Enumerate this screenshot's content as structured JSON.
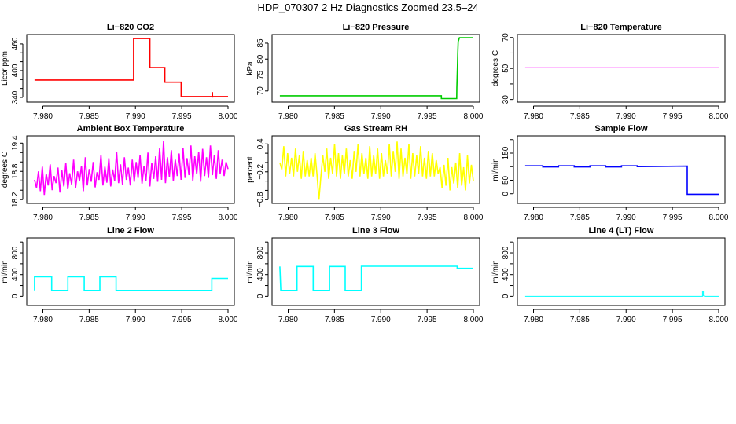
{
  "title": "HDP_070307  2 Hz Diagnostics Zoomed 23.5–24",
  "chart_data": [
    {
      "type": "line",
      "title": "Li−820 CO2",
      "ylabel": "Licor ppm",
      "color": "#ff0000",
      "xlim": [
        7.9791,
        8.0
      ],
      "ylim": [
        329.4,
        481
      ],
      "yticks": [
        340,
        360,
        380,
        400,
        420,
        440,
        460
      ],
      "ylabels": [
        "340",
        "400",
        "460"
      ],
      "ylabelvals": [
        340,
        400,
        460
      ],
      "points": [
        [
          7.9791,
          379
        ],
        [
          7.9898,
          379
        ],
        [
          7.9898,
          472
        ],
        [
          7.99156,
          472
        ],
        [
          7.99156,
          407
        ],
        [
          7.99317,
          407
        ],
        [
          7.99317,
          374
        ],
        [
          7.99494,
          374
        ],
        [
          7.99494,
          342
        ],
        [
          7.99831,
          342
        ],
        [
          7.99831,
          352
        ],
        [
          7.99833,
          340
        ],
        [
          7.99835,
          342
        ],
        [
          8.0,
          342
        ]
      ]
    },
    {
      "type": "line",
      "title": "Li−820 Pressure",
      "ylabel": "kPa",
      "color": "#00cc00",
      "xlim": [
        7.9791,
        8.0
      ],
      "ylim": [
        66.5,
        87.7
      ],
      "yticks": [
        70,
        75,
        80,
        85
      ],
      "ylabels": [
        "70",
        "75",
        "80",
        "85"
      ],
      "ylabelvals": [
        70,
        75,
        80,
        85
      ],
      "points": [
        [
          7.9791,
          68.5
        ],
        [
          7.99654,
          68.5
        ],
        [
          7.99654,
          67.6
        ],
        [
          7.9982,
          67.6
        ],
        [
          7.99822,
          71
        ],
        [
          7.99828,
          77
        ],
        [
          7.99832,
          82
        ],
        [
          7.99836,
          85.5
        ],
        [
          7.9985,
          86.7
        ],
        [
          8.0,
          86.7
        ]
      ]
    },
    {
      "type": "line",
      "title": "Li−820 Temperature",
      "ylabel": "degrees C",
      "color": "#ff00ff",
      "xlim": [
        7.9791,
        8.0
      ],
      "ylim": [
        28.3,
        71.9
      ],
      "yticks": [
        30,
        40,
        50,
        60,
        70
      ],
      "ylabels": [
        "30",
        "50",
        "70"
      ],
      "ylabelvals": [
        30,
        50,
        70
      ],
      "points": [
        [
          7.9791,
          50.5
        ],
        [
          8.0,
          50.5
        ]
      ]
    },
    {
      "type": "line",
      "title": "Ambient Box Temperature",
      "ylabel": "degrees C",
      "color": "#ff00ff",
      "xlim": [
        7.9791,
        8.0
      ],
      "ylim": [
        18.12,
        19.555
      ],
      "yticks": [
        18.2,
        18.4,
        18.6,
        18.8,
        19.0,
        19.2,
        19.4
      ],
      "ylabels": [
        "18.2",
        "18.8",
        "19.4"
      ],
      "ylabelvals": [
        18.2,
        18.8,
        19.4
      ],
      "values": [
        18.62,
        18.45,
        18.8,
        18.38,
        18.9,
        18.3,
        18.75,
        18.5,
        18.95,
        18.4,
        18.7,
        18.55,
        18.88,
        18.35,
        18.82,
        18.48,
        18.98,
        18.42,
        18.76,
        18.52,
        19.05,
        18.45,
        18.8,
        18.6,
        18.92,
        18.38,
        19.1,
        18.5,
        18.85,
        18.58,
        19.0,
        18.46,
        18.78,
        18.62,
        19.15,
        18.5,
        18.9,
        18.56,
        19.08,
        18.48,
        18.84,
        18.6,
        19.22,
        18.55,
        18.95,
        18.52,
        19.1,
        18.62,
        18.88,
        18.5,
        19.05,
        18.58,
        19.0,
        18.66,
        19.15,
        18.54,
        18.92,
        18.6,
        19.2,
        18.48,
        18.98,
        18.64,
        19.12,
        18.58,
        19.3,
        18.62,
        19.45,
        18.55,
        19.1,
        18.68,
        19.25,
        18.6,
        19.05,
        18.7,
        19.18,
        18.62,
        19.3,
        18.66,
        19.08,
        18.72,
        19.35,
        18.6,
        19.12,
        18.74,
        19.22,
        18.58,
        19.28,
        18.7,
        19.1,
        18.66,
        19.35,
        18.72,
        19.15,
        18.64,
        19.25,
        18.75,
        19.05,
        18.7,
        19.0,
        18.85
      ]
    },
    {
      "type": "line",
      "title": "Gas Stream RH",
      "ylabel": "percent",
      "color": "#ffff00",
      "xlim": [
        7.9791,
        8.0
      ],
      "ylim": [
        -0.88,
        0.574
      ],
      "yticks": [
        -0.8,
        -0.6,
        -0.4,
        -0.2,
        0.0,
        0.2,
        0.4
      ],
      "ylabels": [
        "−0.8",
        "−0.2",
        "0.4"
      ],
      "ylabelvals": [
        -0.8,
        -0.2,
        0.4
      ],
      "values": [
        0.0,
        -0.15,
        0.35,
        -0.3,
        0.2,
        -0.25,
        0.1,
        -0.3,
        0.3,
        -0.2,
        0.15,
        -0.35,
        0.25,
        -0.3,
        0.05,
        -0.3,
        0.1,
        -0.3,
        0.2,
        -0.25,
        -0.8,
        -0.3,
        0.15,
        -0.2,
        0.3,
        -0.35,
        0.1,
        -0.25,
        0.4,
        -0.3,
        0.2,
        -0.35,
        0.15,
        -0.25,
        0.3,
        -0.3,
        0.05,
        -0.35,
        0.25,
        -0.2,
        0.4,
        -0.3,
        0.2,
        -0.25,
        0.1,
        -0.35,
        0.35,
        -0.3,
        0.15,
        -0.25,
        0.3,
        -0.35,
        0.2,
        -0.3,
        0.05,
        -0.25,
        0.4,
        -0.3,
        0.25,
        -0.2,
        0.45,
        -0.35,
        0.3,
        -0.3,
        0.1,
        -0.25,
        0.4,
        -0.35,
        0.2,
        -0.3,
        0.15,
        -0.25,
        0.35,
        -0.3,
        0.1,
        -0.35,
        0.25,
        -0.3,
        0.2,
        -0.3,
        0.05,
        -0.25,
        -0.1,
        -0.55,
        -0.05,
        -0.5,
        0.1,
        -0.6,
        -0.1,
        -0.45,
        0.0,
        -0.55,
        0.2,
        -0.5,
        -0.1,
        -0.6,
        0.15,
        -0.45,
        -0.05,
        -0.4
      ]
    },
    {
      "type": "line",
      "title": "Sample Flow",
      "ylabel": "ml/min",
      "color": "#0000ff",
      "xlim": [
        7.9791,
        8.0
      ],
      "ylim": [
        -35.6,
        213.8
      ],
      "yticks": [
        0,
        50,
        100,
        150,
        200
      ],
      "ylabels": [
        "0",
        "50",
        "150"
      ],
      "ylabelvals": [
        0,
        50,
        150
      ],
      "points": [
        [
          7.9791,
          103
        ],
        [
          7.981,
          103
        ],
        [
          7.981,
          99
        ],
        [
          7.9827,
          99
        ],
        [
          7.9827,
          103
        ],
        [
          7.9844,
          103
        ],
        [
          7.9844,
          99
        ],
        [
          7.9861,
          99
        ],
        [
          7.9861,
          103
        ],
        [
          7.9878,
          103
        ],
        [
          7.9878,
          99
        ],
        [
          7.9895,
          99
        ],
        [
          7.9895,
          103
        ],
        [
          7.9912,
          103
        ],
        [
          7.9912,
          100
        ],
        [
          7.9966,
          102
        ],
        [
          7.9966,
          -2
        ],
        [
          8.0,
          -2
        ]
      ]
    },
    {
      "type": "line",
      "title": "Line 2 Flow",
      "ylabel": "ml/min",
      "color": "#00ffff",
      "xlim": [
        7.9791,
        8.0
      ],
      "ylim": [
        -168,
        1075
      ],
      "yticks": [
        0,
        200,
        400,
        600,
        800,
        1000
      ],
      "ylabels": [
        "0",
        "400",
        "800"
      ],
      "ylabelvals": [
        0,
        400,
        800
      ],
      "points": [
        [
          7.9791,
          110
        ],
        [
          7.9791,
          360
        ],
        [
          7.98095,
          360
        ],
        [
          7.98095,
          110
        ],
        [
          7.9827,
          110
        ],
        [
          7.9827,
          360
        ],
        [
          7.98447,
          360
        ],
        [
          7.98447,
          110
        ],
        [
          7.98616,
          110
        ],
        [
          7.98616,
          360
        ],
        [
          7.98791,
          360
        ],
        [
          7.98791,
          110
        ],
        [
          7.99825,
          110
        ],
        [
          7.99825,
          330
        ],
        [
          8.0,
          330
        ]
      ]
    },
    {
      "type": "line",
      "title": "Line 3 Flow",
      "ylabel": "ml/min",
      "color": "#00ffff",
      "xlim": [
        7.9791,
        8.0
      ],
      "ylim": [
        -168,
        1075
      ],
      "yticks": [
        0,
        200,
        400,
        600,
        800,
        1000
      ],
      "ylabels": [
        "0",
        "400",
        "800"
      ],
      "ylabelvals": [
        0,
        400,
        800
      ],
      "points": [
        [
          7.9791,
          550
        ],
        [
          7.9792,
          110
        ],
        [
          7.98095,
          110
        ],
        [
          7.98095,
          550
        ],
        [
          7.9827,
          550
        ],
        [
          7.9827,
          110
        ],
        [
          7.98447,
          110
        ],
        [
          7.98447,
          550
        ],
        [
          7.98616,
          550
        ],
        [
          7.98616,
          110
        ],
        [
          7.98791,
          110
        ],
        [
          7.98791,
          555
        ],
        [
          7.99825,
          555
        ],
        [
          7.99825,
          515
        ],
        [
          8.0,
          515
        ]
      ]
    },
    {
      "type": "line",
      "title": "Line 4 (LT) Flow",
      "ylabel": "ml/min",
      "color": "#00ffff",
      "xlim": [
        7.9791,
        8.0
      ],
      "ylim": [
        -168,
        1075
      ],
      "yticks": [
        0,
        200,
        400,
        600,
        800,
        1000
      ],
      "ylabels": [
        "0",
        "400",
        "800"
      ],
      "ylabelvals": [
        0,
        400,
        800
      ],
      "points": [
        [
          7.9791,
          0
        ],
        [
          7.99825,
          0
        ],
        [
          7.99825,
          100
        ],
        [
          7.99835,
          100
        ],
        [
          7.99835,
          10
        ],
        [
          7.9985,
          0
        ],
        [
          8.0,
          0
        ]
      ]
    }
  ],
  "xticks": [
    7.98,
    7.985,
    7.99,
    7.995,
    8.0
  ],
  "xticklabels": [
    "7.980",
    "7.985",
    "7.990",
    "7.995",
    "8.000"
  ]
}
